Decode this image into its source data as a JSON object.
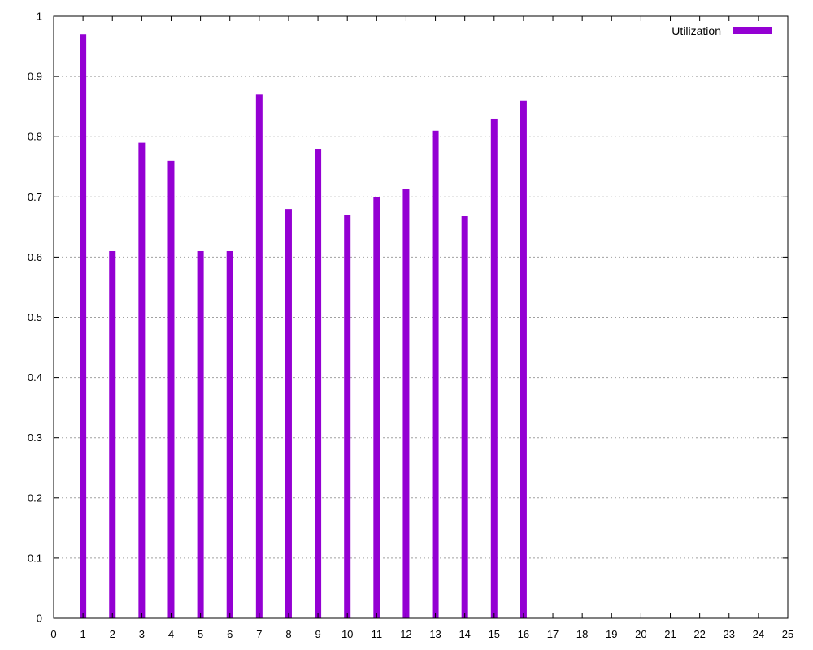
{
  "chart_data": {
    "type": "bar",
    "title": "",
    "xlabel": "",
    "ylabel": "",
    "x": [
      1,
      2,
      3,
      4,
      5,
      6,
      7,
      8,
      9,
      10,
      11,
      12,
      13,
      14,
      15,
      16
    ],
    "series": [
      {
        "name": "Utilization",
        "color": "#9400d3",
        "values": [
          0.97,
          0.61,
          0.79,
          0.76,
          0.61,
          0.61,
          0.87,
          0.68,
          0.78,
          0.67,
          0.7,
          0.713,
          0.81,
          0.668,
          0.83,
          0.86
        ]
      }
    ],
    "xlim": [
      0,
      25
    ],
    "ylim": [
      0,
      1
    ],
    "xticks": [
      0,
      1,
      2,
      3,
      4,
      5,
      6,
      7,
      8,
      9,
      10,
      11,
      12,
      13,
      14,
      15,
      16,
      17,
      18,
      19,
      20,
      21,
      22,
      23,
      24,
      25
    ],
    "yticks": [
      0,
      0.1,
      0.2,
      0.3,
      0.4,
      0.5,
      0.6,
      0.7,
      0.8,
      0.9,
      1
    ],
    "ytick_labels": [
      "0",
      "0.1",
      "0.2",
      "0.3",
      "0.4",
      "0.5",
      "0.6",
      "0.7",
      "0.8",
      "0.9",
      "1"
    ],
    "grid": "horizontal-dotted",
    "legend_position": "top-right"
  }
}
